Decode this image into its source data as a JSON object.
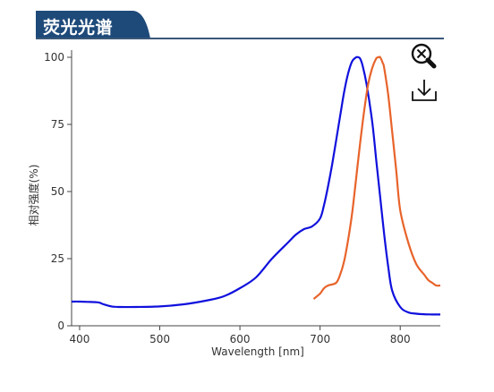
{
  "header": {
    "title": "荧光光谱"
  },
  "toolbar": {
    "zoom_icon": "zoom-out-icon",
    "download_icon": "download-icon"
  },
  "colors": {
    "excitation": "#1010dd",
    "emission": "#e8632a",
    "header_bg": "#1e4a7a",
    "rule": "#3a5878"
  },
  "chart_data": {
    "type": "line",
    "xlabel": "Wavelength [nm]",
    "ylabel": "相对强度(%)",
    "xlim": [
      390,
      850
    ],
    "ylim": [
      0,
      100
    ],
    "xticks": [
      400,
      500,
      600,
      700,
      800
    ],
    "yticks": [
      0,
      25,
      50,
      75,
      100
    ],
    "grid": false,
    "series": [
      {
        "color": "#1010dd",
        "x": [
          390,
          400,
          410,
          420,
          425,
          430,
          440,
          450,
          470,
          500,
          530,
          560,
          580,
          600,
          620,
          640,
          660,
          670,
          680,
          690,
          700,
          705,
          710,
          715,
          720,
          725,
          730,
          735,
          740,
          745,
          748,
          750,
          753,
          758,
          765,
          770,
          775,
          780,
          785,
          790,
          800,
          810,
          820,
          830,
          840,
          850
        ],
        "y": [
          9,
          9,
          8.9,
          8.8,
          8.6,
          8,
          7.2,
          7,
          7,
          7.2,
          8,
          9.5,
          11,
          14,
          18,
          25,
          31,
          34,
          36,
          37,
          40,
          45,
          52,
          60,
          69,
          78,
          87,
          94,
          98.5,
          100,
          100,
          99.5,
          97,
          90,
          76,
          62,
          48,
          34,
          22,
          13,
          7,
          5,
          4.5,
          4.3,
          4.2,
          4.2
        ]
      },
      {
        "color": "#e8632a",
        "x": [
          692,
          700,
          705,
          710,
          720,
          725,
          730,
          735,
          740,
          745,
          750,
          755,
          760,
          765,
          770,
          773,
          775,
          778,
          780,
          785,
          790,
          795,
          800,
          810,
          820,
          830,
          835,
          840,
          845,
          850
        ],
        "y": [
          10,
          12,
          14,
          15,
          16,
          19,
          24,
          32,
          42,
          55,
          68,
          80,
          90,
          96,
          99.5,
          100,
          100,
          98,
          96,
          86,
          72,
          58,
          43,
          31,
          23,
          19,
          17,
          16,
          15,
          15
        ]
      }
    ]
  }
}
